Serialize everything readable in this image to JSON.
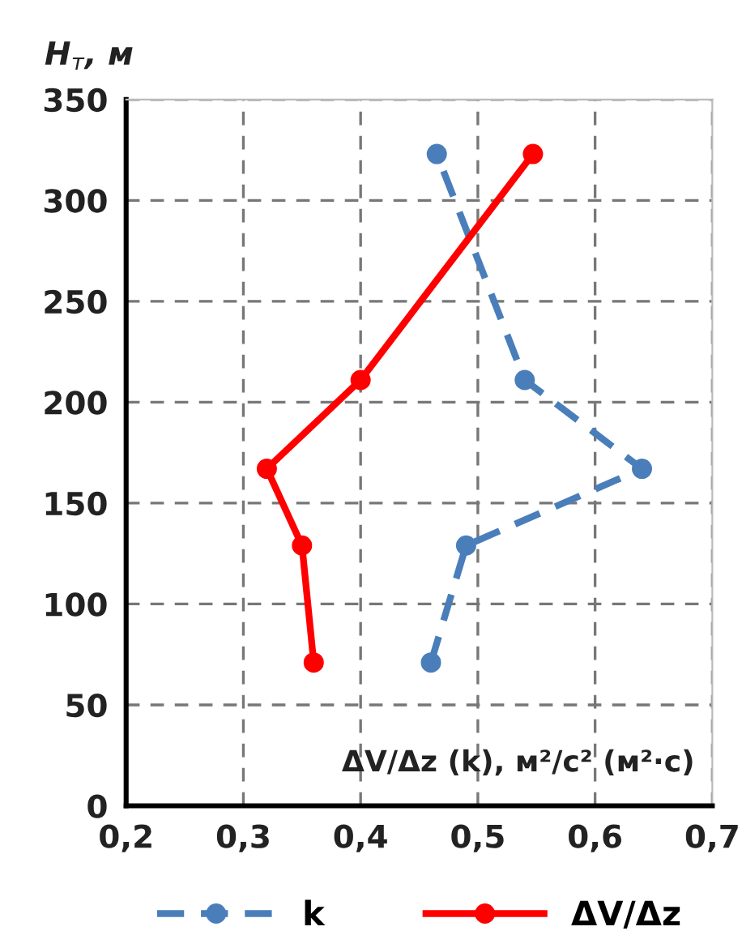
{
  "chart_data": {
    "type": "line",
    "xlabel": "ΔV/Δz (k), м²/с² (м²·с)",
    "ylabel": "H$_{т}$, м",
    "xlim": [
      0.2,
      0.7
    ],
    "xticks": [
      {
        "value": 0.2,
        "label": "0,2"
      },
      {
        "value": 0.3,
        "label": "0,3"
      },
      {
        "value": 0.4,
        "label": "0,4"
      },
      {
        "value": 0.5,
        "label": "0,5"
      },
      {
        "value": 0.6,
        "label": "0,6"
      },
      {
        "value": 0.7,
        "label": "0,7"
      }
    ],
    "ylim": [
      0,
      350
    ],
    "yticks": [
      0,
      50,
      100,
      150,
      200,
      250,
      300,
      350
    ],
    "grid": true,
    "legend": "bottom",
    "marker": "circle",
    "series": [
      {
        "name": "k",
        "color": "#4a7ebb",
        "line_style": "dashed",
        "x": [
          0.46,
          0.49,
          0.64,
          0.54,
          0.465
        ],
        "values": [
          71,
          129,
          167,
          211,
          323
        ]
      },
      {
        "name": "ΔV/Δz",
        "color": "#ff0000",
        "line_style": "solid",
        "x": [
          0.36,
          0.35,
          0.32,
          0.4,
          0.547
        ],
        "values": [
          71,
          129,
          167,
          211,
          323
        ]
      }
    ]
  }
}
